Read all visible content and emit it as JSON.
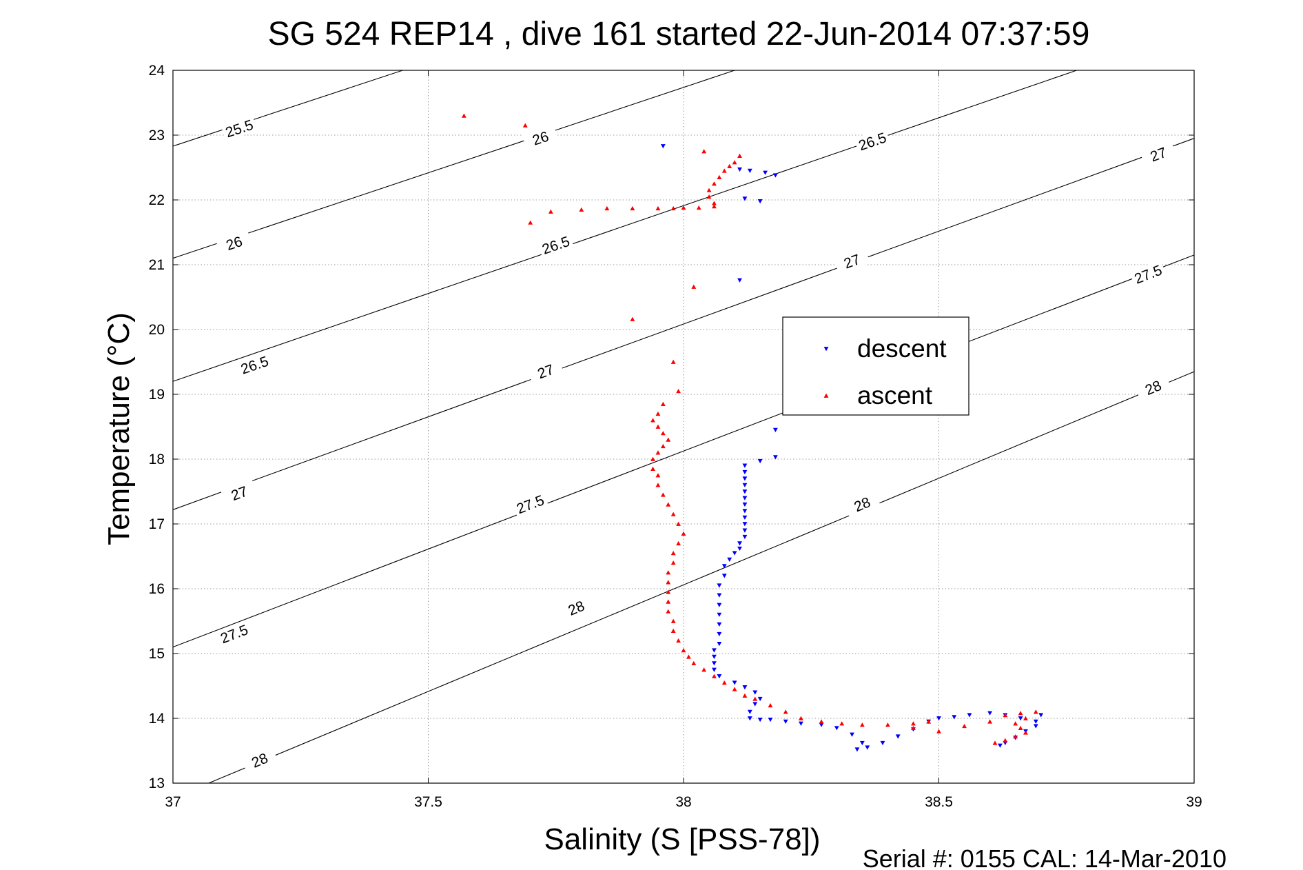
{
  "title": "SG 524   REP14  , dive 161 started 22-Jun-2014 07:37:59",
  "footer": "Serial #: 0155  CAL: 14-Mar-2010",
  "chart_data": {
    "type": "scatter",
    "title": "SG 524   REP14  , dive 161 started 22-Jun-2014 07:37:59",
    "xlabel": "Salinity (S [PSS-78])",
    "ylabel": "Temperature (°C)",
    "xlim": [
      37,
      39
    ],
    "ylim": [
      13,
      24
    ],
    "grid": true,
    "legend_position": "center-right",
    "x_ticks": [
      37,
      37.5,
      38,
      38.5,
      39
    ],
    "x_tick_labels": [
      "37",
      "37.5",
      "38",
      "38.5",
      "39"
    ],
    "y_ticks": [
      13,
      14,
      15,
      16,
      17,
      18,
      19,
      20,
      21,
      22,
      23,
      24
    ],
    "y_tick_labels": [
      "13",
      "14",
      "15",
      "16",
      "17",
      "18",
      "19",
      "20",
      "21",
      "22",
      "23",
      "24"
    ],
    "isopycnals": [
      {
        "label": "25.5",
        "start": [
          37,
          22.83
        ],
        "end": [
          37.45,
          24.0
        ],
        "label_at": [
          37.13,
          23.1
        ]
      },
      {
        "label": "26",
        "start": [
          37,
          21.1
        ],
        "end": [
          38.1,
          24.0
        ],
        "label_at": [
          37.12,
          21.33
        ]
      },
      {
        "label": "26",
        "start": [
          37,
          21.1
        ],
        "end": [
          38.1,
          24.0
        ],
        "label_at": [
          37.72,
          22.95
        ]
      },
      {
        "label": "26.5",
        "start": [
          37,
          19.2
        ],
        "end": [
          38.77,
          24.0
        ],
        "label_at": [
          37.16,
          19.45
        ]
      },
      {
        "label": "26.5",
        "start": [
          37,
          19.2
        ],
        "end": [
          38.77,
          24.0
        ],
        "label_at": [
          37.75,
          21.3
        ]
      },
      {
        "label": "26.5",
        "start": [
          37,
          19.2
        ],
        "end": [
          38.77,
          24.0
        ],
        "label_at": [
          38.37,
          22.9
        ]
      },
      {
        "label": "27",
        "start": [
          37,
          17.22
        ],
        "end": [
          39,
          22.95
        ],
        "label_at": [
          37.13,
          17.47
        ]
      },
      {
        "label": "27",
        "start": [
          37,
          17.22
        ],
        "end": [
          39,
          22.95
        ],
        "label_at": [
          37.73,
          19.35
        ]
      },
      {
        "label": "27",
        "start": [
          37,
          17.22
        ],
        "end": [
          39,
          22.95
        ],
        "label_at": [
          38.33,
          21.05
        ]
      },
      {
        "label": "27",
        "start": [
          37,
          17.22
        ],
        "end": [
          39,
          22.95
        ],
        "label_at": [
          38.93,
          22.7
        ]
      },
      {
        "label": "27.5",
        "start": [
          37,
          15.1
        ],
        "end": [
          39,
          21.15
        ],
        "label_at": [
          37.12,
          15.3
        ]
      },
      {
        "label": "27.5",
        "start": [
          37,
          15.1
        ],
        "end": [
          39,
          21.15
        ],
        "label_at": [
          37.7,
          17.3
        ]
      },
      {
        "label": "27.5",
        "start": [
          37,
          15.1
        ],
        "end": [
          39,
          21.15
        ],
        "label_at": [
          38.91,
          20.85
        ]
      },
      {
        "label": "28",
        "start": [
          37.07,
          13.0
        ],
        "end": [
          39,
          19.35
        ],
        "label_at": [
          37.17,
          13.35
        ]
      },
      {
        "label": "28",
        "start": [
          37.07,
          13.0
        ],
        "end": [
          39,
          19.35
        ],
        "label_at": [
          37.79,
          15.7
        ]
      },
      {
        "label": "28",
        "start": [
          37.07,
          13.0
        ],
        "end": [
          39,
          19.35
        ],
        "label_at": [
          38.35,
          17.3
        ]
      },
      {
        "label": "28",
        "start": [
          37.07,
          13.0
        ],
        "end": [
          39,
          19.35
        ],
        "label_at": [
          38.92,
          19.1
        ]
      }
    ],
    "series": [
      {
        "name": "descent",
        "color": "#0000ff",
        "marker": "triangle-down",
        "points": [
          [
            37.96,
            22.83
          ],
          [
            38.11,
            22.47
          ],
          [
            38.13,
            22.45
          ],
          [
            38.16,
            22.42
          ],
          [
            38.18,
            22.38
          ],
          [
            38.12,
            22.02
          ],
          [
            38.15,
            21.98
          ],
          [
            38.11,
            20.76
          ],
          [
            38.18,
            18.45
          ],
          [
            38.18,
            18.03
          ],
          [
            38.15,
            17.97
          ],
          [
            38.12,
            17.9
          ],
          [
            38.12,
            17.8
          ],
          [
            38.12,
            17.7
          ],
          [
            38.12,
            17.6
          ],
          [
            38.12,
            17.5
          ],
          [
            38.12,
            17.4
          ],
          [
            38.12,
            17.3
          ],
          [
            38.12,
            17.2
          ],
          [
            38.12,
            17.1
          ],
          [
            38.12,
            17.0
          ],
          [
            38.12,
            16.9
          ],
          [
            38.12,
            16.8
          ],
          [
            38.11,
            16.7
          ],
          [
            38.11,
            16.62
          ],
          [
            38.1,
            16.55
          ],
          [
            38.09,
            16.45
          ],
          [
            38.08,
            16.35
          ],
          [
            38.08,
            16.2
          ],
          [
            38.07,
            16.05
          ],
          [
            38.07,
            15.9
          ],
          [
            38.07,
            15.75
          ],
          [
            38.07,
            15.6
          ],
          [
            38.07,
            15.45
          ],
          [
            38.07,
            15.3
          ],
          [
            38.07,
            15.15
          ],
          [
            38.06,
            15.05
          ],
          [
            38.06,
            14.95
          ],
          [
            38.06,
            14.85
          ],
          [
            38.06,
            14.75
          ],
          [
            38.07,
            14.65
          ],
          [
            38.1,
            14.55
          ],
          [
            38.12,
            14.48
          ],
          [
            38.14,
            14.4
          ],
          [
            38.15,
            14.3
          ],
          [
            38.14,
            14.22
          ],
          [
            38.13,
            14.1
          ],
          [
            38.13,
            14.0
          ],
          [
            38.15,
            13.98
          ],
          [
            38.17,
            13.98
          ],
          [
            38.2,
            13.95
          ],
          [
            38.23,
            13.92
          ],
          [
            38.27,
            13.9
          ],
          [
            38.3,
            13.85
          ],
          [
            38.33,
            13.75
          ],
          [
            38.35,
            13.62
          ],
          [
            38.34,
            13.52
          ],
          [
            38.36,
            13.55
          ],
          [
            38.39,
            13.62
          ],
          [
            38.42,
            13.72
          ],
          [
            38.45,
            13.83
          ],
          [
            38.48,
            13.95
          ],
          [
            38.5,
            14.0
          ],
          [
            38.53,
            14.02
          ],
          [
            38.56,
            14.05
          ],
          [
            38.6,
            14.08
          ],
          [
            38.63,
            14.05
          ],
          [
            38.66,
            14.0
          ],
          [
            38.69,
            13.95
          ],
          [
            38.7,
            14.05
          ],
          [
            38.69,
            13.88
          ],
          [
            38.67,
            13.8
          ],
          [
            38.65,
            13.7
          ],
          [
            38.63,
            13.62
          ],
          [
            38.62,
            13.58
          ]
        ]
      },
      {
        "name": "ascent",
        "color": "#ff0000",
        "marker": "triangle-up",
        "points": [
          [
            37.57,
            23.3
          ],
          [
            37.69,
            23.15
          ],
          [
            38.04,
            22.75
          ],
          [
            38.11,
            22.68
          ],
          [
            38.1,
            22.58
          ],
          [
            38.09,
            22.52
          ],
          [
            38.08,
            22.45
          ],
          [
            38.07,
            22.35
          ],
          [
            38.06,
            22.25
          ],
          [
            38.05,
            22.15
          ],
          [
            38.05,
            22.05
          ],
          [
            38.06,
            21.95
          ],
          [
            38.06,
            21.9
          ],
          [
            38.03,
            21.88
          ],
          [
            38.0,
            21.88
          ],
          [
            37.98,
            21.87
          ],
          [
            37.95,
            21.87
          ],
          [
            37.9,
            21.87
          ],
          [
            37.85,
            21.87
          ],
          [
            37.8,
            21.85
          ],
          [
            37.74,
            21.82
          ],
          [
            37.7,
            21.65
          ],
          [
            38.02,
            20.66
          ],
          [
            37.9,
            20.16
          ],
          [
            37.98,
            19.5
          ],
          [
            37.99,
            19.05
          ],
          [
            37.96,
            18.85
          ],
          [
            37.95,
            18.7
          ],
          [
            37.94,
            18.6
          ],
          [
            37.95,
            18.5
          ],
          [
            37.96,
            18.4
          ],
          [
            37.97,
            18.3
          ],
          [
            37.96,
            18.2
          ],
          [
            37.95,
            18.1
          ],
          [
            37.94,
            18.0
          ],
          [
            37.94,
            17.85
          ],
          [
            37.95,
            17.75
          ],
          [
            37.95,
            17.6
          ],
          [
            37.96,
            17.45
          ],
          [
            37.97,
            17.3
          ],
          [
            37.98,
            17.15
          ],
          [
            37.99,
            17.0
          ],
          [
            38.0,
            16.85
          ],
          [
            37.99,
            16.7
          ],
          [
            37.98,
            16.55
          ],
          [
            37.98,
            16.4
          ],
          [
            37.97,
            16.25
          ],
          [
            37.97,
            16.1
          ],
          [
            37.97,
            15.95
          ],
          [
            37.97,
            15.8
          ],
          [
            37.97,
            15.65
          ],
          [
            37.98,
            15.5
          ],
          [
            37.98,
            15.35
          ],
          [
            37.99,
            15.2
          ],
          [
            38.0,
            15.05
          ],
          [
            38.01,
            14.95
          ],
          [
            38.02,
            14.85
          ],
          [
            38.04,
            14.75
          ],
          [
            38.06,
            14.65
          ],
          [
            38.08,
            14.55
          ],
          [
            38.1,
            14.45
          ],
          [
            38.12,
            14.35
          ],
          [
            38.14,
            14.3
          ],
          [
            38.17,
            14.2
          ],
          [
            38.2,
            14.1
          ],
          [
            38.23,
            14.0
          ],
          [
            38.27,
            13.95
          ],
          [
            38.31,
            13.92
          ],
          [
            38.35,
            13.9
          ],
          [
            38.4,
            13.9
          ],
          [
            38.45,
            13.92
          ],
          [
            38.48,
            13.95
          ],
          [
            38.45,
            13.85
          ],
          [
            38.5,
            13.8
          ],
          [
            38.55,
            13.88
          ],
          [
            38.6,
            13.95
          ],
          [
            38.63,
            14.05
          ],
          [
            38.66,
            14.08
          ],
          [
            38.69,
            14.1
          ],
          [
            38.67,
            14.0
          ],
          [
            38.65,
            13.92
          ],
          [
            38.66,
            13.85
          ],
          [
            38.67,
            13.78
          ],
          [
            38.65,
            13.72
          ],
          [
            38.63,
            13.66
          ],
          [
            38.61,
            13.62
          ]
        ]
      }
    ]
  }
}
